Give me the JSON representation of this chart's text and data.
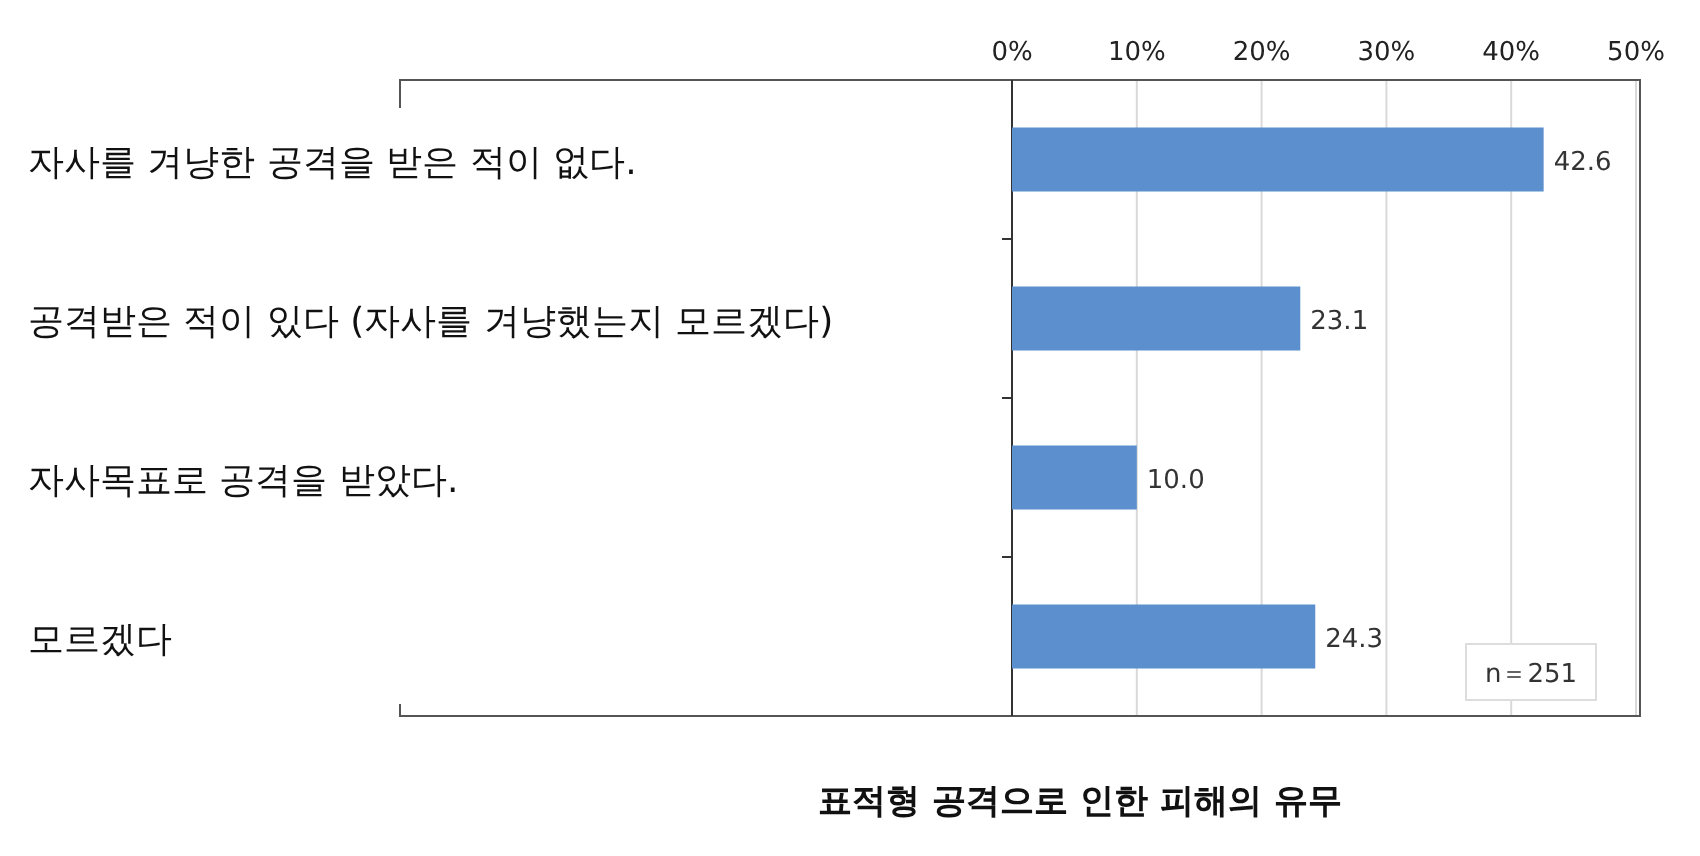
{
  "chart_data": {
    "type": "bar",
    "orientation": "horizontal",
    "title": "표적형 공격으로 인한 피해의 유무",
    "categories": [
      "자사를 겨냥한 공격을 받은 적이 없다.",
      "공격받은 적이 있다 (자사를 겨냥했는지 모르겠다)",
      "자사목표로 공격을 받았다.",
      "모르겠다"
    ],
    "values": [
      42.6,
      23.1,
      10.0,
      24.3
    ],
    "value_labels": [
      "42.6",
      "23.1",
      "10.0",
      "24.3"
    ],
    "color": "#5b8fce",
    "xlim": [
      0,
      50
    ],
    "xticks": [
      {
        "value": 0,
        "label": "0%"
      },
      {
        "value": 10,
        "label": "10%"
      },
      {
        "value": 20,
        "label": "20%"
      },
      {
        "value": 30,
        "label": "30%"
      },
      {
        "value": 40,
        "label": "40%"
      },
      {
        "value": 50,
        "label": "50%"
      }
    ],
    "grid": "x",
    "annotations": [
      "n＝251"
    ]
  }
}
